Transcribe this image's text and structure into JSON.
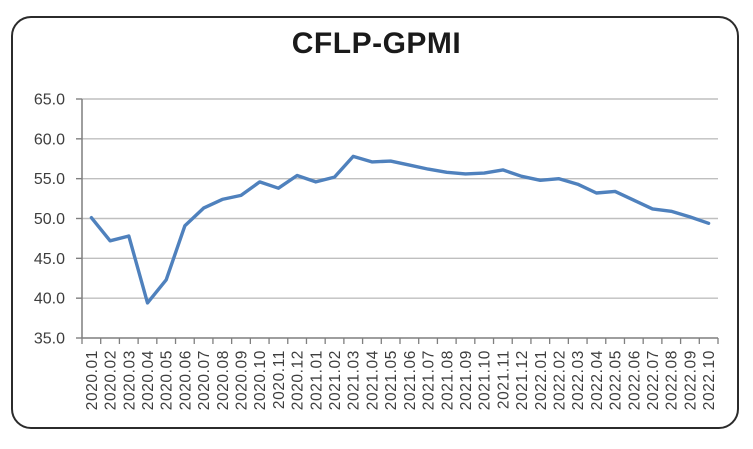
{
  "figure": {
    "title": "CFLP-GPMI"
  },
  "chart_data": {
    "type": "line",
    "title": "CFLP-GPMI",
    "categories": [
      "2020.01",
      "2020.02",
      "2020.03",
      "2020.04",
      "2020.05",
      "2020.06",
      "2020.07",
      "2020.08",
      "2020.09",
      "2020.10",
      "2020.11",
      "2020.12",
      "2021.01",
      "2021.02",
      "2021.03",
      "2021.04",
      "2021.05",
      "2021.06",
      "2021.07",
      "2021.08",
      "2021.09",
      "2021.10",
      "2021.11",
      "2021.12",
      "2022.01",
      "2022.02",
      "2022.03",
      "2022.04",
      "2022.05",
      "2022.06",
      "2022.07",
      "2022.08",
      "2022.09",
      "2022.10"
    ],
    "series": [
      {
        "name": "CFLP-GPMI",
        "values": [
          50.1,
          47.2,
          47.8,
          39.4,
          42.3,
          49.1,
          51.3,
          52.4,
          52.9,
          54.6,
          53.8,
          55.4,
          54.6,
          55.2,
          57.8,
          57.1,
          57.2,
          56.7,
          56.2,
          55.8,
          55.6,
          55.7,
          56.1,
          55.3,
          54.8,
          55.0,
          54.3,
          53.2,
          53.4,
          52.3,
          51.2,
          50.9,
          50.2,
          49.4
        ]
      }
    ],
    "xlabel": "",
    "ylabel": "",
    "ylim": [
      35.0,
      65.0
    ],
    "y_tick_labels": [
      "65.0",
      "60.0",
      "55.0",
      "50.0",
      "45.0",
      "40.0",
      "35.0"
    ],
    "grid": "horizontal",
    "legend": "none",
    "colors": {
      "line": "#4F81BD",
      "grid": "#BFBFBF",
      "axis": "#7F7F7F",
      "tick_label": "#3D3D3D",
      "title": "#1A1A1A",
      "frame_border": "#2B2B2B",
      "background": "#FFFFFF"
    }
  }
}
